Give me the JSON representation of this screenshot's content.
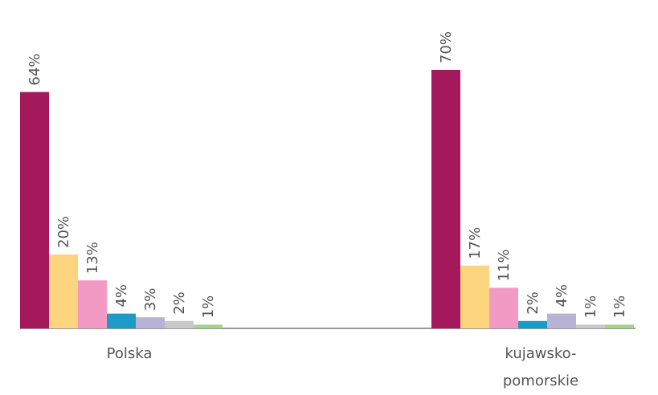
{
  "chart_data": {
    "type": "bar",
    "categories": [
      "Polska",
      "kujawsko-pomorskie"
    ],
    "series": [
      {
        "color": "#a3195b",
        "values": [
          64,
          70
        ],
        "value_labels": [
          "64%",
          "70%"
        ]
      },
      {
        "color": "#fdd57e",
        "values": [
          20,
          17
        ],
        "value_labels": [
          "20%",
          "17%"
        ]
      },
      {
        "color": "#f39ac4",
        "values": [
          13,
          11
        ],
        "value_labels": [
          "13%",
          "11%"
        ]
      },
      {
        "color": "#1e9bc4",
        "values": [
          4,
          2
        ],
        "value_labels": [
          "4%",
          "2%"
        ]
      },
      {
        "color": "#b8b3d6",
        "values": [
          3,
          4
        ],
        "value_labels": [
          "3%",
          "4%"
        ]
      },
      {
        "color": "#c8c8c8",
        "values": [
          2,
          1
        ],
        "value_labels": [
          "2%",
          "1%"
        ]
      },
      {
        "color": "#a6d18b",
        "values": [
          1,
          1
        ],
        "value_labels": [
          "1%",
          "1%"
        ]
      }
    ]
  }
}
